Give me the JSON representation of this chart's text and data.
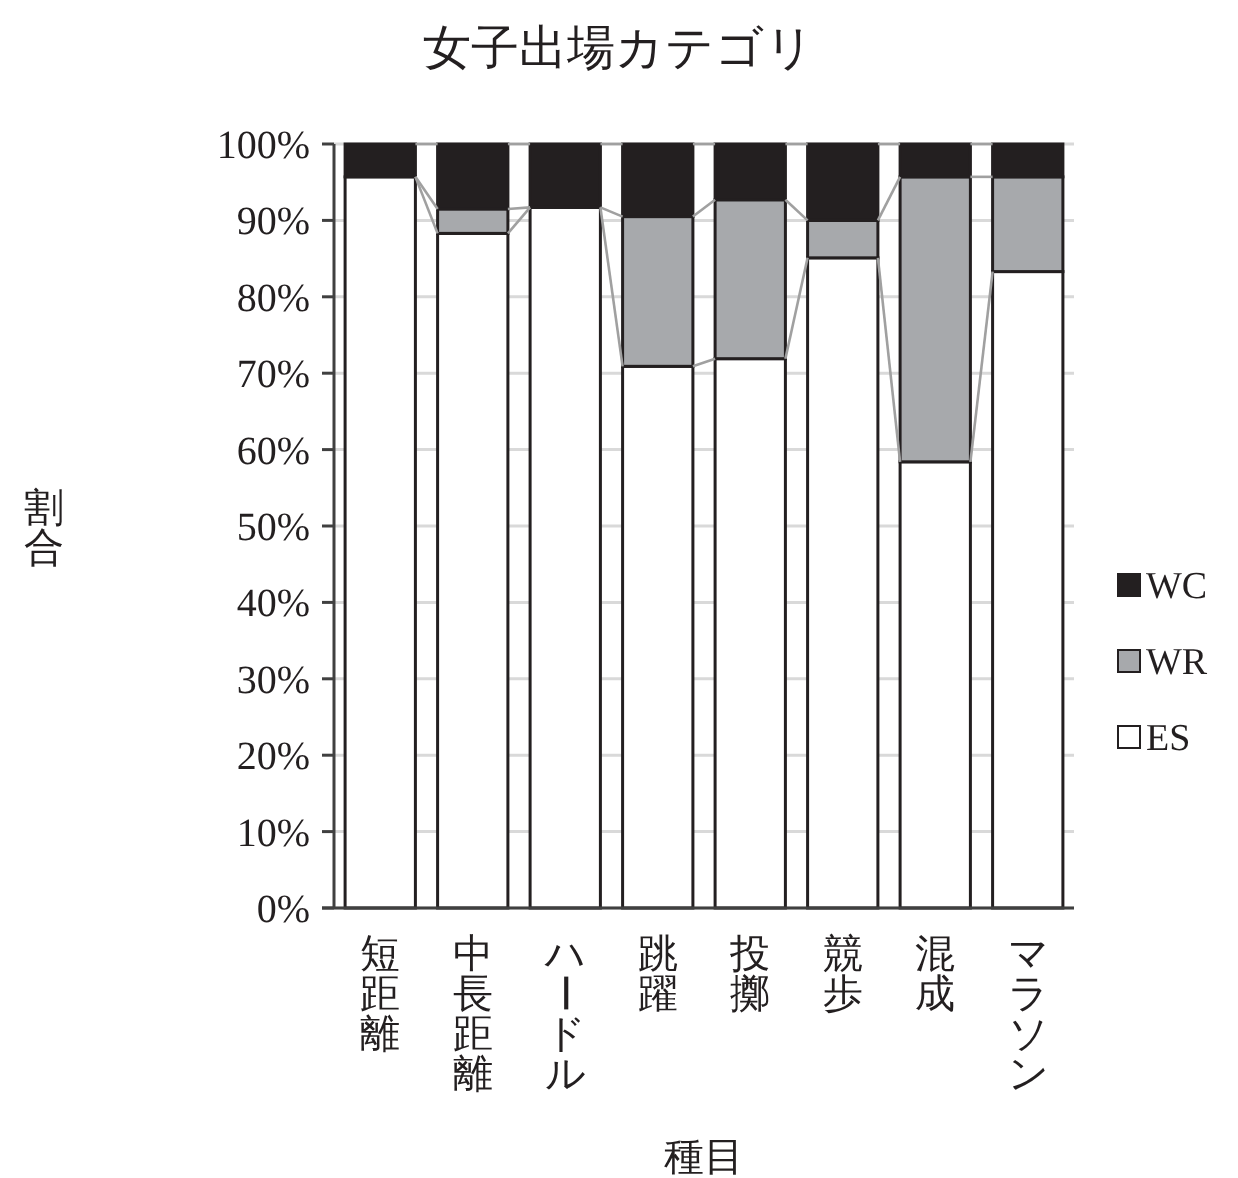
{
  "chart_data": {
    "type": "bar",
    "title": "女子出場カテゴリ",
    "xlabel": "種目",
    "ylabel": "割合",
    "stacked": true,
    "categories": [
      "短距離",
      "中長距離",
      "ハードル",
      "跳躍",
      "投擲",
      "競歩",
      "混成",
      "マラソン"
    ],
    "series": [
      {
        "name": "ES",
        "color": "#ffffff",
        "values": [
          95.7,
          88.3,
          91.7,
          70.9,
          71.9,
          85.1,
          58.4,
          83.3
        ]
      },
      {
        "name": "WR",
        "color": "#a7a9ac",
        "values": [
          0,
          3.2,
          0,
          19.6,
          20.8,
          4.9,
          37.3,
          12.4
        ]
      },
      {
        "name": "WC",
        "color": "#231f20",
        "values": [
          4.3,
          8.5,
          8.3,
          9.5,
          7.3,
          10.0,
          4.3,
          4.3
        ]
      }
    ],
    "ylim": [
      0,
      100
    ],
    "yticks": [
      {
        "value": 0,
        "label": "0%"
      },
      {
        "value": 10,
        "label": "10%"
      },
      {
        "value": 20,
        "label": "20%"
      },
      {
        "value": 30,
        "label": "30%"
      },
      {
        "value": 40,
        "label": "40%"
      },
      {
        "value": 50,
        "label": "50%"
      },
      {
        "value": 60,
        "label": "60%"
      },
      {
        "value": 70,
        "label": "70%"
      },
      {
        "value": 80,
        "label": "80%"
      },
      {
        "value": 90,
        "label": "90%"
      },
      {
        "value": 100,
        "label": "100%"
      }
    ],
    "grid": "y",
    "legend": "right"
  }
}
